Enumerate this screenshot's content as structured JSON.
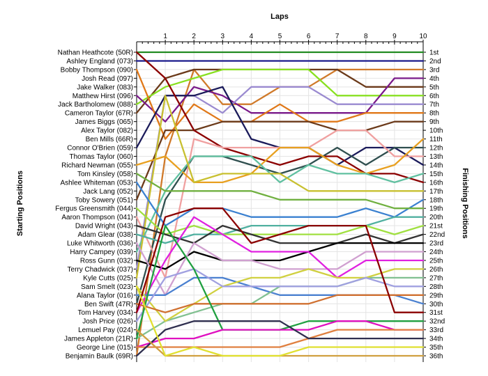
{
  "chart_data": {
    "type": "line",
    "title": "",
    "top_axis_label": "Laps",
    "ylabel_left": "Starting Positions",
    "ylabel_right": "Finishing Positions",
    "x": [
      0,
      1,
      2,
      3,
      4,
      5,
      6,
      7,
      8,
      9,
      10
    ],
    "x_ticks": [
      "1",
      "2",
      "3",
      "4",
      "5",
      "6",
      "7",
      "8",
      "9",
      "10"
    ],
    "ylim": [
      1,
      36
    ],
    "y_inverted": true,
    "grid": true,
    "starting_labels": [
      "Nathan Heathcote (50R)",
      "Ashley England (073)",
      "Bobby Thompson (090)",
      "Josh Read (097)",
      "Jake Walker (083)",
      "Matthew Hirst (096)",
      "Jack Bartholomew (088)",
      "Cameron Taylor (67R)",
      "James Biggs (065)",
      "Alex Taylor (082)",
      "Ben Mills (66R)",
      "Connor O'Brien (059)",
      "Thomas Taylor (060)",
      "Richard Newman (055)",
      "Tom Kinsley (058)",
      "Ashlee Whiteman (053)",
      "Jack Lang (052)",
      "Toby Sowery (051)",
      "Fergus Greensmith (044)",
      "Aaron Thompson (041)",
      "David Wright (043)",
      "Adam Glear (038)",
      "Luke Whitworth (036)",
      "Harry Campey (039)",
      "Ross Gunn (032)",
      "Terry Chadwick (037)",
      "Kyle Cutts (025)",
      "Sam Smelt (023)",
      "Alana Taylor (016)",
      "Ben Swift (47R)",
      "Tom Harvey (034)",
      "Josh Price (026)",
      "Lemuel Pay (024)",
      "James Appleton (21R)",
      "George Line (015)",
      "Benjamin Baulk (69R)"
    ],
    "finishing_labels": [
      "1st",
      "2nd",
      "3rd",
      "4th",
      "5th",
      "6th",
      "7th",
      "8th",
      "9th",
      "10th",
      "11th",
      "12th",
      "13th",
      "14th",
      "15th",
      "16th",
      "17th",
      "18th",
      "19th",
      "20th",
      "21st",
      "22nd",
      "23rd",
      "24th",
      "25th",
      "26th",
      "27th",
      "28th",
      "29th",
      "30th",
      "31st",
      "32nd",
      "33rd",
      "34th",
      "35th",
      "36th"
    ],
    "series": [
      {
        "color": "#228b22",
        "values": [
          1,
          1,
          1,
          1,
          1,
          1,
          1,
          1,
          1,
          1,
          1
        ]
      },
      {
        "color": "#1a1a8c",
        "values": [
          2,
          2,
          2,
          2,
          2,
          2,
          2,
          2,
          2,
          2,
          2
        ]
      },
      {
        "color": "#d07a2a",
        "values": [
          36,
          13,
          3,
          7,
          7,
          5,
          5,
          3,
          3,
          3,
          3
        ]
      },
      {
        "color": "#6b3a1a",
        "values": [
          8,
          4,
          3,
          3,
          3,
          3,
          3,
          3,
          5,
          5,
          5
        ]
      },
      {
        "color": "#88e020",
        "values": [
          7,
          5,
          4,
          3,
          3,
          3,
          3,
          6,
          6,
          6,
          6
        ]
      },
      {
        "color": "#7a1a8a",
        "values": [
          6,
          9,
          5,
          6,
          8,
          8,
          8,
          8,
          8,
          4,
          4
        ]
      },
      {
        "color": "#9a8ad0",
        "values": [
          26,
          6,
          6,
          8,
          5,
          5,
          5,
          7,
          7,
          7,
          7
        ]
      },
      {
        "color": "#e07818",
        "values": [
          3,
          11,
          7,
          9,
          9,
          7,
          9,
          9,
          8,
          8,
          8
        ]
      },
      {
        "color": "#6b3a1a",
        "values": [
          18,
          10,
          10,
          9,
          9,
          9,
          9,
          10,
          10,
          9,
          9
        ]
      },
      {
        "color": "#1a1a5a",
        "values": [
          12,
          6,
          6,
          5,
          11,
          12,
          12,
          14,
          12,
          12,
          14
        ]
      },
      {
        "color": "#8b0000",
        "values": [
          1,
          4,
          10,
          12,
          13,
          14,
          13,
          13,
          15,
          15,
          16
        ]
      },
      {
        "color": "#2f4f4f",
        "values": [
          30,
          18,
          13,
          13,
          14,
          15,
          14,
          12,
          14,
          12,
          12
        ]
      },
      {
        "color": "#f0a0a0",
        "values": [
          20,
          27,
          11,
          12,
          12,
          12,
          12,
          10,
          10,
          13,
          13
        ]
      },
      {
        "color": "#e8a020",
        "values": [
          14,
          13,
          16,
          16,
          15,
          12,
          12,
          14,
          15,
          14,
          11
        ]
      },
      {
        "color": "#60c0a0",
        "values": [
          24,
          17,
          13,
          13,
          13,
          16,
          14,
          15,
          15,
          16,
          15
        ]
      },
      {
        "color": "#c8c030",
        "values": [
          27,
          6,
          16,
          15,
          15,
          15,
          17,
          17,
          17,
          17,
          17
        ]
      },
      {
        "color": "#3a80d0",
        "values": [
          16,
          21,
          19,
          19,
          20,
          20,
          20,
          20,
          19,
          20,
          18
        ]
      },
      {
        "color": "#70b040",
        "values": [
          15,
          17,
          17,
          17,
          17,
          18,
          18,
          18,
          18,
          19,
          19
        ]
      },
      {
        "color": "#50b0a0",
        "values": [
          22,
          23,
          22,
          22,
          21,
          21,
          21,
          21,
          21,
          20,
          20
        ]
      },
      {
        "color": "#a0e040",
        "values": [
          19,
          22,
          21,
          22,
          22,
          22,
          22,
          22,
          21,
          22,
          21
        ]
      },
      {
        "color": "#333333",
        "values": [
          21,
          22,
          23,
          21,
          22,
          23,
          23,
          23,
          22,
          23,
          22
        ]
      },
      {
        "color": "#000000",
        "values": [
          25,
          26,
          24,
          25,
          25,
          25,
          24,
          23,
          23,
          23,
          23
        ]
      },
      {
        "color": "#d0a0d0",
        "values": [
          23,
          29,
          23,
          25,
          25,
          26,
          26,
          26,
          24,
          24,
          24
        ]
      },
      {
        "color": "#e020e0",
        "values": [
          31,
          25,
          20,
          22,
          24,
          24,
          24,
          27,
          25,
          25,
          25
        ]
      },
      {
        "color": "#4a80d0",
        "values": [
          29,
          29,
          27,
          27,
          28,
          29,
          29,
          29,
          29,
          29,
          30
        ]
      },
      {
        "color": "#80c090",
        "values": [
          34,
          32,
          31,
          30,
          30,
          28,
          28,
          28,
          27,
          27,
          27
        ]
      },
      {
        "color": "#d0d040",
        "values": [
          28,
          32,
          30,
          28,
          27,
          27,
          26,
          27,
          27,
          26,
          26
        ]
      },
      {
        "color": "#a0a0e0",
        "values": [
          32,
          27,
          26,
          28,
          28,
          28,
          28,
          28,
          27,
          28,
          28
        ]
      },
      {
        "color": "#d07030",
        "values": [
          30,
          31,
          30,
          30,
          30,
          30,
          30,
          29,
          29,
          29,
          29
        ]
      },
      {
        "color": "#8b0000",
        "values": [
          31,
          20,
          19,
          19,
          23,
          22,
          21,
          21,
          21,
          31,
          31
        ]
      },
      {
        "color": "#20a040",
        "values": [
          34,
          21,
          26,
          33,
          33,
          33,
          32,
          32,
          32,
          32,
          32
        ]
      },
      {
        "color": "#e010c0",
        "values": [
          35,
          34,
          34,
          33,
          33,
          33,
          33,
          32,
          32,
          33,
          33
        ]
      },
      {
        "color": "#e08040",
        "values": [
          35,
          35,
          35,
          35,
          35,
          35,
          34,
          33,
          33,
          33,
          33
        ]
      },
      {
        "color": "#2f2f4f",
        "values": [
          36,
          33,
          32,
          32,
          32,
          32,
          34,
          34,
          34,
          34,
          34
        ]
      },
      {
        "color": "#d0a040",
        "values": [
          33,
          36,
          36,
          36,
          36,
          36,
          36,
          36,
          36,
          36,
          36
        ]
      },
      {
        "color": "#e0e030",
        "values": [
          28,
          36,
          35,
          36,
          36,
          36,
          35,
          35,
          35,
          35,
          35
        ]
      }
    ]
  }
}
